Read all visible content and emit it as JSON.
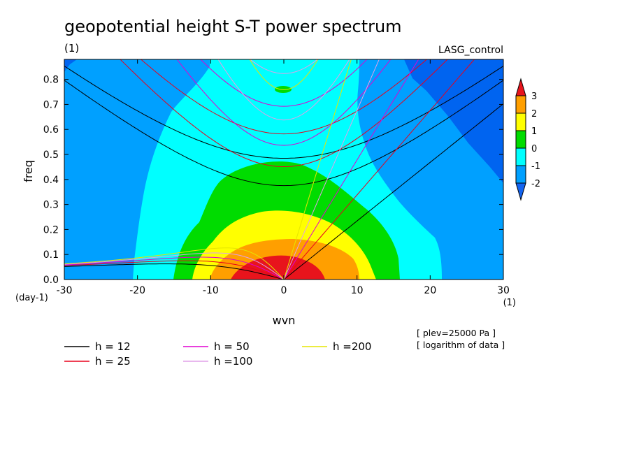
{
  "chart_data": {
    "type": "heatmap",
    "title": "geopotential height S-T power spectrum",
    "subtitle_left": "(1)",
    "subtitle_right": "LASG_control",
    "xlabel": "wvn",
    "ylabel": "freq",
    "x_unit": "(1)",
    "y_unit": "(day-1)",
    "xlim": [
      -30,
      30
    ],
    "ylim": [
      0,
      0.88
    ],
    "x_ticks": [
      "-30",
      "-20",
      "-10",
      "0",
      "10",
      "20",
      "30"
    ],
    "y_ticks": [
      "0.0",
      "0.1",
      "0.2",
      "0.3",
      "0.4",
      "0.5",
      "0.6",
      "0.7",
      "0.8"
    ],
    "colorbar": {
      "levels": [
        "3",
        "2",
        "1",
        "0",
        "-1",
        "-2"
      ],
      "colors": [
        "#e8141c",
        "#ff9f00",
        "#ffff00",
        "#00dc00",
        "#00ffff",
        "#00a0ff",
        "#0064f0"
      ],
      "top_color": "#e8141c",
      "bottom_color": "#1464f0"
    },
    "dispersion_curves": [
      {
        "label": "h = 12",
        "h": 12,
        "color": "#000000"
      },
      {
        "label": "h = 25",
        "h": 25,
        "color": "#e8001c"
      },
      {
        "label": "h = 50",
        "h": 50,
        "color": "#e000d0"
      },
      {
        "label": "h =100",
        "h": 100,
        "color": "#e0a0e8"
      },
      {
        "label": "h =200",
        "h": 200,
        "color": "#e6e600"
      }
    ],
    "notes": [
      "[ plev=25000 Pa ]",
      "[ logarithm of data ]"
    ]
  }
}
